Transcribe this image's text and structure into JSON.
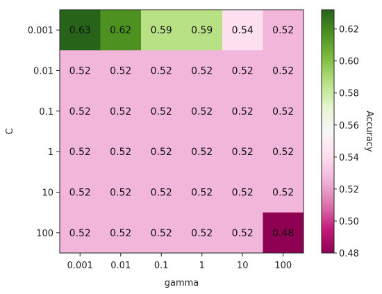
{
  "chart_data": {
    "type": "heatmap",
    "x_categories": [
      "0.001",
      "0.01",
      "0.1",
      "1",
      "10",
      "100"
    ],
    "y_categories": [
      "0.001",
      "0.01",
      "0.1",
      "1",
      "10",
      "100"
    ],
    "xlabel": "gamma",
    "ylabel": "C",
    "values": [
      [
        0.63,
        0.62,
        0.59,
        0.59,
        0.54,
        0.52
      ],
      [
        0.52,
        0.52,
        0.52,
        0.52,
        0.52,
        0.52
      ],
      [
        0.52,
        0.52,
        0.52,
        0.52,
        0.52,
        0.52
      ],
      [
        0.52,
        0.52,
        0.52,
        0.52,
        0.52,
        0.52
      ],
      [
        0.52,
        0.52,
        0.52,
        0.52,
        0.52,
        0.52
      ],
      [
        0.52,
        0.52,
        0.52,
        0.52,
        0.52,
        0.48
      ]
    ],
    "cell_labels": [
      [
        "0.63",
        "0.62",
        "0.59",
        "0.59",
        "0.54",
        "0.52"
      ],
      [
        "0.52",
        "0.52",
        "0.52",
        "0.52",
        "0.52",
        "0.52"
      ],
      [
        "0.52",
        "0.52",
        "0.52",
        "0.52",
        "0.52",
        "0.52"
      ],
      [
        "0.52",
        "0.52",
        "0.52",
        "0.52",
        "0.52",
        "0.52"
      ],
      [
        "0.52",
        "0.52",
        "0.52",
        "0.52",
        "0.52",
        "0.52"
      ],
      [
        "0.52",
        "0.52",
        "0.52",
        "0.52",
        "0.52",
        "0.48"
      ]
    ],
    "colorbar": {
      "label": "Accuracy",
      "range": [
        0.48,
        0.632
      ],
      "ticks": [
        "0.48",
        "0.50",
        "0.52",
        "0.54",
        "0.56",
        "0.58",
        "0.60",
        "0.62"
      ],
      "colormap": "PiYG"
    },
    "cell_colors": [
      [
        "#276419",
        "#4d9221",
        "#b8e186",
        "#b8e186",
        "#fde0ef",
        "#f1b6da"
      ],
      [
        "#f1b6da",
        "#f1b6da",
        "#f1b6da",
        "#f1b6da",
        "#f1b6da",
        "#f1b6da"
      ],
      [
        "#f1b6da",
        "#f1b6da",
        "#f1b6da",
        "#f1b6da",
        "#f1b6da",
        "#f1b6da"
      ],
      [
        "#f1b6da",
        "#f1b6da",
        "#f1b6da",
        "#f1b6da",
        "#f1b6da",
        "#f1b6da"
      ],
      [
        "#f1b6da",
        "#f1b6da",
        "#f1b6da",
        "#f1b6da",
        "#f1b6da",
        "#f1b6da"
      ],
      [
        "#f1b6da",
        "#f1b6da",
        "#f1b6da",
        "#f1b6da",
        "#f1b6da",
        "#8e0152"
      ]
    ],
    "grid": false,
    "legend": "none"
  }
}
